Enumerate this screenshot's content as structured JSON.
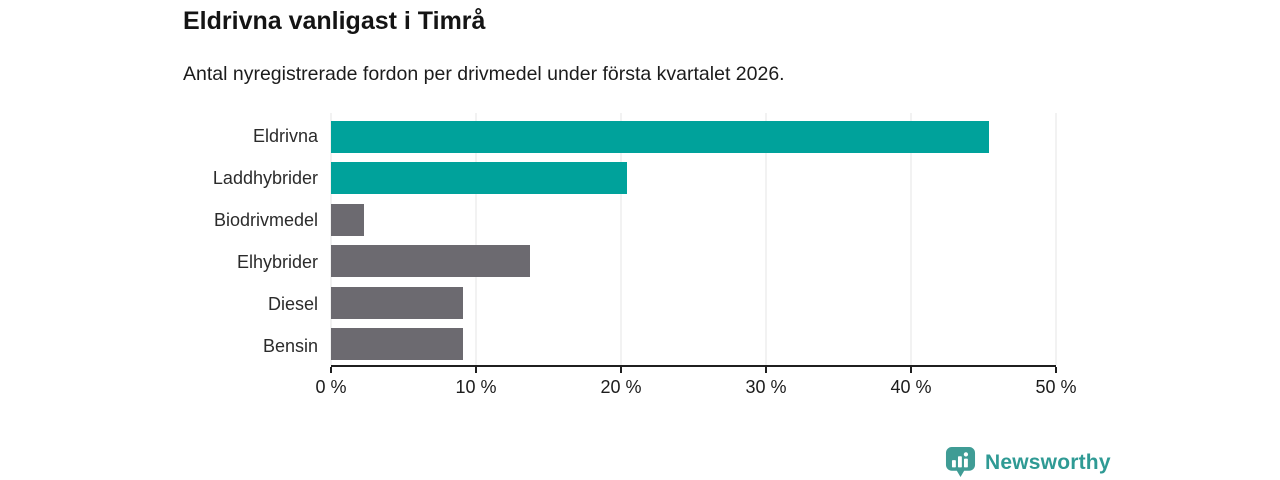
{
  "header": {
    "title": "Eldrivna vanligast i Timrå",
    "subtitle": "Antal nyregistrerade fordon per drivmedel under första kvartalet 2026."
  },
  "chart_data": {
    "type": "bar",
    "orientation": "horizontal",
    "title": "Eldrivna vanligast i Timrå",
    "subtitle": "Antal nyregistrerade fordon per drivmedel under första kvartalet 2026.",
    "categories": [
      "Eldrivna",
      "Laddhybrider",
      "Biodrivmedel",
      "Elhybrider",
      "Diesel",
      "Bensin"
    ],
    "values": [
      45.4,
      20.4,
      2.3,
      13.7,
      9.1,
      9.1
    ],
    "unit": "%",
    "bar_colors": [
      "#00A29B",
      "#00A29B",
      "#6C6A70",
      "#6C6A70",
      "#6C6A70",
      "#6C6A70"
    ],
    "xlim": [
      0,
      50
    ],
    "x_ticks": [
      0,
      10,
      20,
      30,
      40,
      50
    ],
    "x_tick_labels": [
      "0 %",
      "10 %",
      "20 %",
      "30 %",
      "40 %",
      "50 %"
    ],
    "grid": true,
    "legend": false,
    "xlabel": "",
    "ylabel": ""
  },
  "footer": {
    "brand": "Newsworthy"
  },
  "colors": {
    "accent_teal": "#00A29B",
    "neutral_gray": "#6C6A70",
    "gridline": "#E4E4E4",
    "axis": "#1F1F1F",
    "text_dark": "#1C1C1C",
    "logo_mark": "#3F9C95",
    "logo_text": "#2F9A94"
  }
}
